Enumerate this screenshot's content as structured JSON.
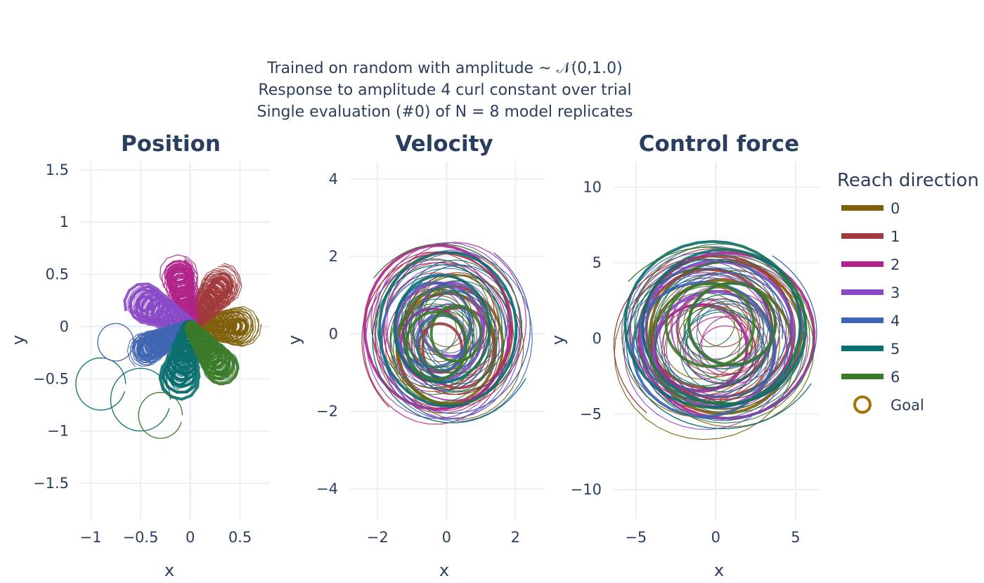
{
  "chart_data": {
    "type": "line",
    "title_lines": [
      "Trained on random with amplitude ~ 𝒩(0,1.0)",
      "Response to amplitude 4 curl constant over trial",
      "Single evaluation (#0) of N = 8 model replicates"
    ],
    "legend": {
      "title": "Reach direction",
      "placement": "right",
      "entries": [
        {
          "label": "0",
          "color": "#7f5f0b"
        },
        {
          "label": "1",
          "color": "#a13a3c"
        },
        {
          "label": "2",
          "color": "#b0248a"
        },
        {
          "label": "3",
          "color": "#8a49c6"
        },
        {
          "label": "4",
          "color": "#3f65b0"
        },
        {
          "label": "5",
          "color": "#0b6e6e"
        },
        {
          "label": "6",
          "color": "#3b7a2a"
        }
      ],
      "goal_label": "Goal",
      "goal_color": "#a8720a"
    },
    "grid": true,
    "subplots": [
      {
        "title": "Position",
        "xlabel": "x",
        "ylabel": "y",
        "xlim": [
          -1.1,
          0.8
        ],
        "ylim": [
          -1.85,
          1.58
        ],
        "xticks": [
          -1,
          -0.5,
          0,
          0.5
        ],
        "xtick_labels": [
          "−1",
          "−0.5",
          "0",
          "0.5"
        ],
        "yticks": [
          -1.5,
          -1,
          -0.5,
          0,
          0.5,
          1,
          1.5
        ],
        "ytick_labels": [
          "−1.5",
          "−1",
          "−0.5",
          "0",
          "0.5",
          "1",
          "1.5"
        ],
        "goals": [
          [
            0.5,
            0.0
          ],
          [
            0.31,
            0.39
          ],
          [
            -0.11,
            0.49
          ],
          [
            -0.45,
            0.22
          ],
          [
            -0.45,
            -0.22
          ],
          [
            -0.11,
            -0.49
          ],
          [
            0.31,
            -0.39
          ]
        ]
      },
      {
        "title": "Velocity",
        "xlabel": "x",
        "ylabel": "y",
        "xlim": [
          -2.8,
          2.85
        ],
        "ylim": [
          -4.8,
          4.45
        ],
        "xticks": [
          -2,
          0,
          2
        ],
        "xtick_labels": [
          "−2",
          "0",
          "2"
        ],
        "yticks": [
          -4,
          -2,
          0,
          2,
          4
        ],
        "ytick_labels": [
          "−4",
          "−2",
          "0",
          "2",
          "4"
        ]
      },
      {
        "title": "Control force",
        "xlabel": "x",
        "ylabel": "y",
        "xlim": [
          -6.4,
          6.5
        ],
        "ylim": [
          -12.0,
          11.7
        ],
        "xticks": [
          -5,
          0,
          5
        ],
        "xtick_labels": [
          "−5",
          "0",
          "5"
        ],
        "yticks": [
          -10,
          -5,
          0,
          5,
          10
        ],
        "ytick_labels": [
          "−10",
          "−5",
          "0",
          "5",
          "10"
        ]
      }
    ]
  }
}
